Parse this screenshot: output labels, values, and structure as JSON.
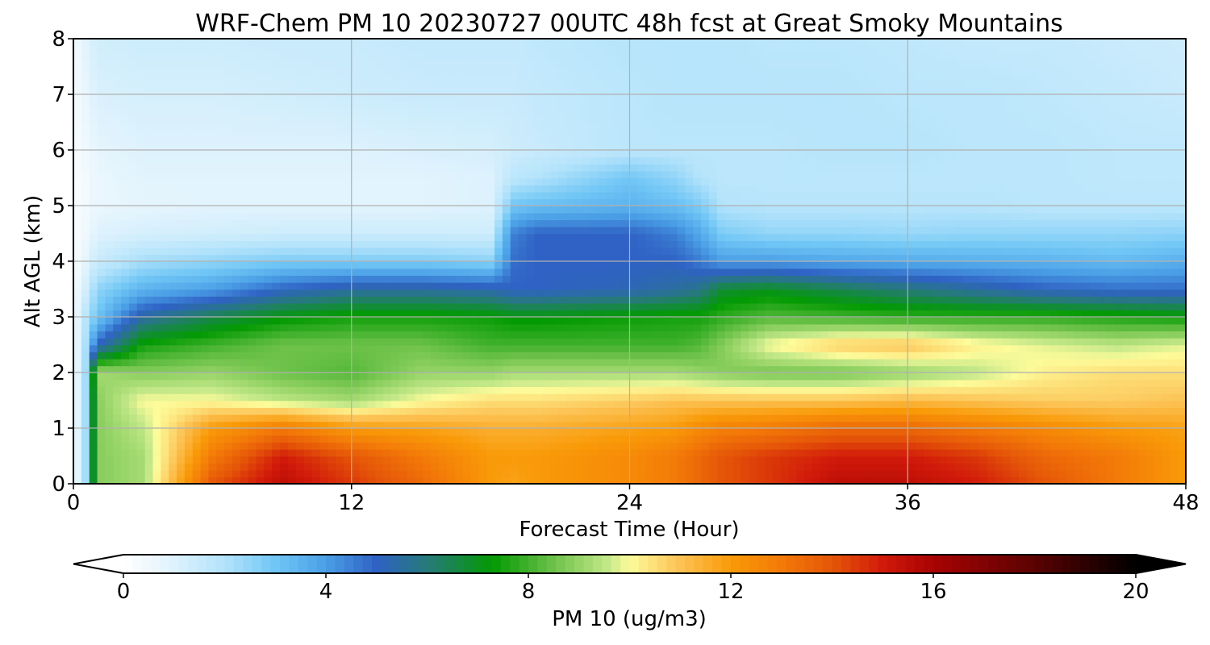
{
  "chart_data": {
    "type": "heatmap",
    "title": "WRF-Chem PM 10  20230727 00UTC 48h fcst at Great Smoky Mountains",
    "xlabel": "Forecast Time (Hour)",
    "ylabel": "Alt AGL (km)",
    "xlim": [
      0,
      48
    ],
    "ylim": [
      0,
      8
    ],
    "xticks": [
      0,
      12,
      24,
      36,
      48
    ],
    "yticks": [
      0,
      1,
      2,
      3,
      4,
      5,
      6,
      7,
      8
    ],
    "grid": true,
    "x": [
      0,
      0.5,
      1,
      3,
      6,
      9,
      12,
      15,
      18,
      19,
      20,
      24,
      26,
      27,
      28,
      30,
      33,
      36,
      39,
      42,
      45,
      48
    ],
    "y": [
      0,
      0.5,
      1,
      1.5,
      2,
      2.5,
      3,
      3.5,
      4,
      4.5,
      5,
      5.5,
      6,
      7,
      8
    ],
    "z_rows_by_altitude": [
      [
        0.3,
        2.0,
        8.8,
        9.2,
        14.0,
        15.5,
        14.5,
        13.5,
        12.0,
        11.8,
        12.0,
        12.5,
        13.0,
        13.5,
        14.0,
        14.5,
        15.5,
        15.5,
        15.0,
        14.0,
        13.0,
        12.0
      ],
      [
        0.3,
        2.0,
        8.8,
        9.2,
        13.0,
        15.0,
        14.0,
        13.0,
        12.0,
        12.0,
        12.0,
        12.5,
        13.0,
        13.5,
        14.0,
        14.5,
        15.0,
        15.0,
        14.5,
        13.5,
        13.0,
        12.0
      ],
      [
        0.3,
        2.0,
        8.8,
        9.5,
        12.0,
        13.0,
        12.0,
        11.8,
        11.5,
        11.5,
        11.5,
        11.8,
        12.0,
        12.5,
        12.8,
        13.0,
        13.5,
        13.5,
        13.0,
        12.5,
        12.0,
        11.8
      ],
      [
        0.3,
        2.0,
        8.8,
        10.0,
        10.0,
        9.5,
        9.2,
        10.0,
        10.5,
        10.5,
        10.5,
        10.8,
        11.0,
        11.0,
        11.0,
        11.0,
        11.0,
        11.2,
        11.0,
        10.8,
        10.8,
        11.0
      ],
      [
        0.3,
        2.0,
        9.2,
        8.8,
        9.0,
        8.5,
        8.2,
        9.0,
        9.0,
        9.2,
        9.2,
        9.2,
        9.2,
        9.0,
        8.8,
        8.6,
        8.6,
        9.0,
        9.5,
        10.2,
        10.5,
        10.5
      ],
      [
        0.3,
        2.0,
        5.0,
        7.5,
        8.0,
        8.5,
        8.5,
        8.5,
        8.0,
        8.0,
        8.0,
        8.0,
        8.0,
        8.2,
        8.8,
        10.0,
        10.8,
        11.0,
        10.2,
        9.8,
        9.5,
        9.8
      ],
      [
        0.3,
        1.8,
        3.0,
        5.5,
        6.5,
        7.2,
        7.5,
        7.5,
        7.4,
        7.2,
        7.2,
        7.4,
        7.5,
        7.5,
        7.8,
        8.2,
        8.0,
        7.8,
        7.8,
        7.8,
        7.6,
        7.4
      ],
      [
        0.3,
        1.2,
        2.5,
        3.5,
        4.0,
        5.0,
        5.5,
        5.5,
        5.3,
        5.0,
        5.0,
        5.2,
        5.5,
        5.8,
        6.8,
        7.0,
        6.5,
        6.0,
        5.5,
        5.0,
        4.8,
        4.8
      ],
      [
        0.2,
        0.8,
        1.5,
        2.2,
        2.5,
        2.8,
        2.8,
        2.8,
        2.6,
        4.8,
        5.0,
        5.0,
        5.0,
        4.6,
        4.0,
        4.0,
        3.8,
        3.7,
        3.6,
        3.5,
        3.3,
        3.6
      ],
      [
        0.2,
        0.5,
        1.0,
        1.2,
        1.3,
        1.4,
        1.4,
        1.4,
        1.4,
        4.5,
        5.0,
        5.0,
        4.5,
        3.8,
        2.8,
        2.5,
        2.5,
        2.4,
        2.5,
        2.5,
        2.5,
        2.6
      ],
      [
        0.2,
        0.4,
        0.7,
        0.8,
        0.9,
        0.9,
        0.9,
        0.9,
        1.0,
        3.0,
        3.2,
        3.5,
        3.2,
        2.8,
        2.0,
        1.9,
        1.9,
        1.9,
        1.9,
        1.8,
        1.8,
        1.8
      ],
      [
        0.2,
        0.4,
        0.7,
        0.9,
        0.9,
        0.9,
        0.9,
        0.9,
        1.0,
        1.8,
        2.0,
        3.0,
        2.5,
        2.0,
        1.8,
        1.8,
        1.8,
        1.8,
        1.8,
        1.8,
        1.7,
        1.7
      ],
      [
        0.2,
        0.5,
        0.8,
        1.0,
        1.0,
        1.0,
        1.0,
        1.1,
        1.2,
        1.4,
        1.5,
        1.8,
        1.8,
        1.8,
        1.8,
        1.8,
        1.9,
        1.9,
        1.8,
        1.8,
        1.7,
        1.7
      ],
      [
        0.3,
        0.7,
        1.1,
        1.2,
        1.2,
        1.3,
        1.4,
        1.5,
        1.5,
        1.5,
        1.6,
        1.8,
        1.9,
        1.9,
        1.9,
        1.9,
        1.9,
        1.8,
        1.8,
        1.7,
        1.6,
        1.5
      ],
      [
        0.4,
        0.9,
        1.3,
        1.4,
        1.4,
        1.5,
        1.5,
        1.6,
        1.6,
        1.6,
        1.7,
        1.9,
        1.9,
        1.9,
        1.9,
        1.8,
        1.8,
        1.7,
        1.6,
        1.6,
        1.5,
        1.4
      ]
    ],
    "colorbar": {
      "label": "PM 10  (ug/m3)",
      "min": 0,
      "max": 20,
      "ticks": [
        0,
        4,
        8,
        12,
        16,
        20
      ],
      "extend": "both",
      "orientation": "horizontal",
      "position": "bottom",
      "stops": [
        {
          "v": 0,
          "c": "#ffffff"
        },
        {
          "v": 0.8,
          "c": "#e6f5fd"
        },
        {
          "v": 2,
          "c": "#b3e3fb"
        },
        {
          "v": 3,
          "c": "#70c6f5"
        },
        {
          "v": 4,
          "c": "#4a9fe6"
        },
        {
          "v": 5,
          "c": "#2f62c4"
        },
        {
          "v": 6,
          "c": "#267a7a"
        },
        {
          "v": 7.3,
          "c": "#039a03"
        },
        {
          "v": 8.5,
          "c": "#6ec24a"
        },
        {
          "v": 9.6,
          "c": "#c6e98a"
        },
        {
          "v": 10,
          "c": "#fdfb9a"
        },
        {
          "v": 11,
          "c": "#fcc254"
        },
        {
          "v": 12,
          "c": "#f99a08"
        },
        {
          "v": 13,
          "c": "#f37a08"
        },
        {
          "v": 14,
          "c": "#e55608"
        },
        {
          "v": 15,
          "c": "#d11a0a"
        },
        {
          "v": 16,
          "c": "#a80303"
        },
        {
          "v": 18,
          "c": "#5a0202"
        },
        {
          "v": 20,
          "c": "#000000"
        }
      ]
    }
  }
}
